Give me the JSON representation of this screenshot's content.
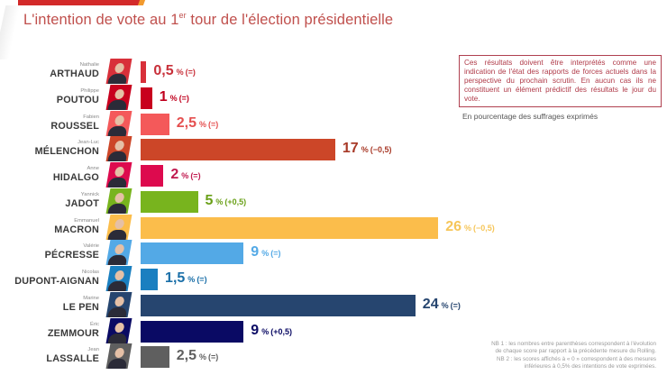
{
  "title": {
    "main_before": "L'intention de vote au 1",
    "superscript": "er",
    "main_after": " tour de l'élection présidentielle"
  },
  "disclaimer": "Ces résultats doivent être interprétés comme une indication de l'état des rapports de forces actuels dans la perspective du prochain scrutin. En aucun cas ils ne constituent un élément prédictif des résultats le jour du vote.",
  "subtitle": "En pourcentage des suffrages exprimés",
  "notes": [
    "NB 1 : les nombres entre parenthèses correspondent à l'évolution",
    "de chaque score par rapport à la précédente mesure du Rolling.",
    "NB 2 : les scores affichés à « 0 » correspondent à des mesures",
    "inférieures à 0,5% des intentions de vote exprimées."
  ],
  "chart_data": {
    "type": "bar",
    "orientation": "horizontal",
    "title": "L'intention de vote au 1er tour de l'élection présidentielle",
    "xlabel": "En pourcentage des suffrages exprimés",
    "ylabel": "",
    "xlim": [
      0,
      26
    ],
    "grid": false,
    "legend": "none",
    "unit_label": "%",
    "categories": [
      "ARTHAUD",
      "POUTOU",
      "ROUSSEL",
      "MÉLENCHON",
      "HIDALGO",
      "JADOT",
      "MACRON",
      "PÉCRESSE",
      "DUPONT-AIGNAN",
      "LE PEN",
      "ZEMMOUR",
      "LASSALLE"
    ],
    "first_names": [
      "Nathalie",
      "Philippe",
      "Fabien",
      "Jean-Luc",
      "Anne",
      "Yannick",
      "Emmanuel",
      "Valérie",
      "Nicolas",
      "Marine",
      "Éric",
      "Jean"
    ],
    "values": [
      0.5,
      1,
      2.5,
      17,
      2,
      5,
      26,
      9,
      1.5,
      24,
      9,
      2.5
    ],
    "value_labels": [
      "0,5",
      "1",
      "2,5",
      "17",
      "2",
      "5",
      "26",
      "9",
      "1,5",
      "24",
      "9",
      "2,5"
    ],
    "changes": [
      "(=)",
      "(=)",
      "(=)",
      "(−0,5)",
      "(=)",
      "(+0,5)",
      "(−0,5)",
      "(=)",
      "(=)",
      "(=)",
      "(+0,5)",
      "(=)"
    ],
    "colors": [
      "#d8303a",
      "#c8001e",
      "#f4595a",
      "#cc4628",
      "#dd0a4e",
      "#78b41e",
      "#fbbd4b",
      "#53a9e6",
      "#1a7fc0",
      "#26456f",
      "#0a0a64",
      "#5f5f5f"
    ],
    "label_colors": [
      "#c8303a",
      "#c0001e",
      "#e55050",
      "#a83a28",
      "#c0184e",
      "#6aa018",
      "#f6c65a",
      "#53a9e6",
      "#1a6fa8",
      "#26456f",
      "#0a0a64",
      "#5f5f5f"
    ]
  }
}
